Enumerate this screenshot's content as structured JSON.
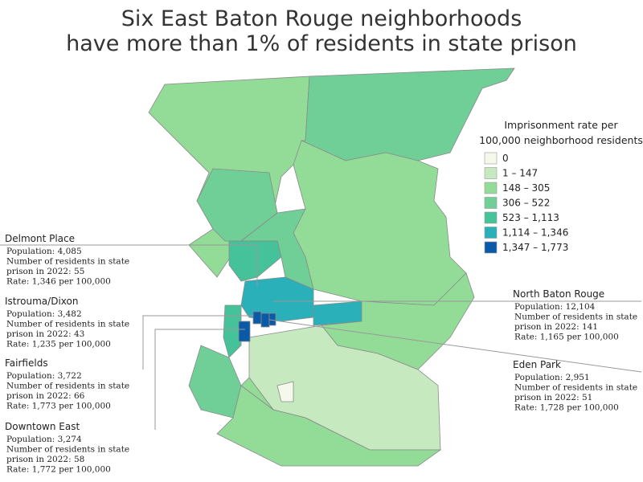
{
  "title": [
    "Six East Baton Rouge neighborhoods",
    "have more than 1% of residents in state prison"
  ],
  "legend": {
    "title": [
      "Imprisonment rate per",
      "100,000 neighborhood residents"
    ],
    "items": [
      {
        "label": "0",
        "color": "#f4f9ec"
      },
      {
        "label": "1 – 147",
        "color": "#c7e9c0"
      },
      {
        "label": "148 – 305",
        "color": "#93dc98"
      },
      {
        "label": "306 – 522",
        "color": "#6fcf97"
      },
      {
        "label": "523 – 1,113",
        "color": "#46c29b"
      },
      {
        "label": "1,114 – 1,346",
        "color": "#2ab0b8"
      },
      {
        "label": "1,347 – 1,773",
        "color": "#0b5aa8"
      }
    ]
  },
  "callouts": [
    {
      "name": "Delmont Place",
      "lines": [
        "Population: 4,085",
        "Number of residents in state",
        "prison in 2022: 55",
        "Rate: 1,346 per 100,000"
      ]
    },
    {
      "name": "Istrouma/Dixon",
      "lines": [
        "Population: 3,482",
        "Number of residents in state",
        "prison in 2022: 43",
        "Rate: 1,235 per 100,000"
      ]
    },
    {
      "name": "Fairfields",
      "lines": [
        "Population: 3,722",
        "Number of residents in state",
        "prison in 2022: 66",
        "Rate: 1,773 per 100,000"
      ]
    },
    {
      "name": "Downtown East",
      "lines": [
        "Population: 3,274",
        "Number of residents in state",
        "prison in 2022: 58",
        "Rate: 1,772 per 100,000"
      ]
    },
    {
      "name": "North Baton Rouge",
      "lines": [
        "Population: 12,104",
        "Number of residents in state",
        "prison in 2022: 141",
        "Rate: 1,165 per 100,000"
      ]
    },
    {
      "name": "Eden Park",
      "lines": [
        "Population: 2,951",
        "Number of residents in state",
        "prison in 2022: 51",
        "Rate: 1,728 per 100,000"
      ]
    }
  ]
}
